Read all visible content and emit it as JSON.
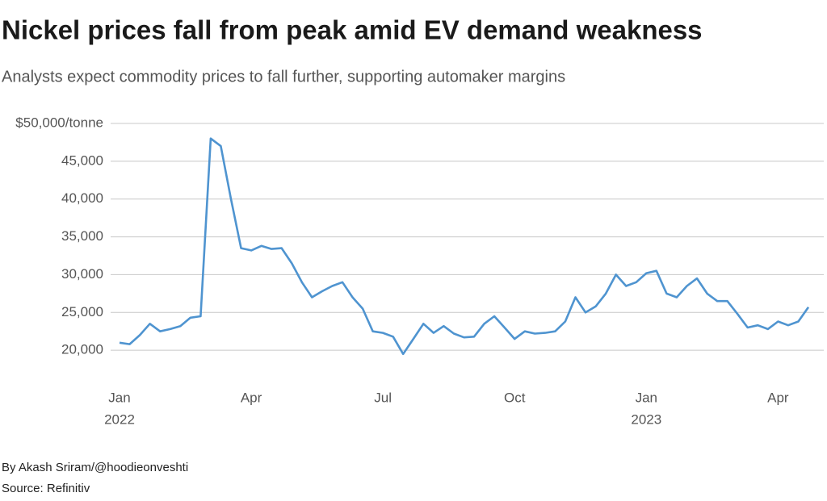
{
  "chart_data": {
    "type": "line",
    "title": "Nickel prices fall from peak amid EV demand weakness",
    "subtitle": "Analysts expect commodity prices to fall further, supporting automaker margins",
    "byline": "By Akash Sriram/@hoodieonveshti",
    "source": "Source: Refinitiv",
    "color": "#4f94d0",
    "grid": true,
    "x": [
      "2022-01",
      "2022-01",
      "2022-01",
      "2022-01",
      "2022-01",
      "2022-02",
      "2022-02",
      "2022-02",
      "2022-02",
      "2022-03",
      "2022-03",
      "2022-03",
      "2022-03",
      "2022-04",
      "2022-04",
      "2022-04",
      "2022-04",
      "2022-05",
      "2022-05",
      "2022-05",
      "2022-05",
      "2022-06",
      "2022-06",
      "2022-06",
      "2022-06",
      "2022-06",
      "2022-07",
      "2022-07",
      "2022-07",
      "2022-07",
      "2022-08",
      "2022-08",
      "2022-08",
      "2022-08",
      "2022-08",
      "2022-09",
      "2022-09",
      "2022-09",
      "2022-09",
      "2022-10",
      "2022-10",
      "2022-10",
      "2022-10",
      "2022-11",
      "2022-11",
      "2022-11",
      "2022-11",
      "2022-12",
      "2022-12",
      "2022-12",
      "2022-12",
      "2022-12",
      "2023-01",
      "2023-01",
      "2023-01",
      "2023-01",
      "2023-02",
      "2023-02",
      "2023-02",
      "2023-02",
      "2023-03",
      "2023-03",
      "2023-03",
      "2023-03",
      "2023-03",
      "2023-04",
      "2023-04",
      "2023-04",
      "2023-04"
    ],
    "values": [
      21000,
      20800,
      22000,
      23500,
      22500,
      22800,
      23200,
      24300,
      24500,
      48000,
      47000,
      40000,
      33500,
      33200,
      33800,
      33400,
      33500,
      31500,
      29000,
      27000,
      27800,
      28500,
      29000,
      27000,
      25500,
      22500,
      22300,
      21800,
      19500,
      21500,
      23500,
      22300,
      23200,
      22200,
      21700,
      21800,
      23500,
      24500,
      23000,
      21500,
      22500,
      22200,
      22300,
      22500,
      23800,
      27000,
      25000,
      25800,
      27500,
      30000,
      28500,
      29000,
      30200,
      30500,
      27500,
      27000,
      28500,
      29500,
      27500,
      26500,
      26500,
      24800,
      23000,
      23300,
      22800,
      23800,
      23300,
      23800,
      25700
    ],
    "xticks": [
      {
        "value": "2022-01",
        "label": "Jan",
        "sublabel": "2022"
      },
      {
        "value": "2022-04",
        "label": "Apr"
      },
      {
        "value": "2022-07",
        "label": "Jul"
      },
      {
        "value": "2022-10",
        "label": "Oct"
      },
      {
        "value": "2023-01",
        "label": "Jan",
        "sublabel": "2023"
      },
      {
        "value": "2023-04",
        "label": "Apr"
      }
    ],
    "ylim": [
      15000,
      50000
    ],
    "yticks": [
      {
        "value": 20000,
        "label": "20,000"
      },
      {
        "value": 25000,
        "label": "25,000"
      },
      {
        "value": 30000,
        "label": "30,000"
      },
      {
        "value": 35000,
        "label": "35,000"
      },
      {
        "value": 40000,
        "label": "40,000"
      },
      {
        "value": 45000,
        "label": "45,000"
      },
      {
        "value": 50000,
        "label": "$50,000/tonne"
      }
    ]
  }
}
